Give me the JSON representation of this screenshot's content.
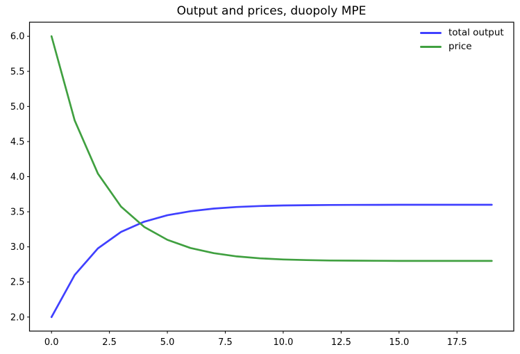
{
  "chart_data": {
    "type": "line",
    "title": "Output and prices, duopoly MPE",
    "xlabel": "",
    "ylabel": "",
    "grid": false,
    "x": [
      0,
      1,
      2,
      3,
      4,
      5,
      6,
      7,
      8,
      9,
      10,
      11,
      12,
      13,
      14,
      15,
      16,
      17,
      18,
      19
    ],
    "series": [
      {
        "name": "total output",
        "color": "#4040ff",
        "values": [
          2.0,
          2.6,
          2.978,
          3.213,
          3.358,
          3.45,
          3.508,
          3.545,
          3.568,
          3.582,
          3.59,
          3.594,
          3.597,
          3.598,
          3.599,
          3.6,
          3.6,
          3.6,
          3.6,
          3.6
        ]
      },
      {
        "name": "price",
        "color": "#40a040",
        "values": [
          6.0,
          4.8,
          4.044,
          3.574,
          3.284,
          3.1,
          2.984,
          2.91,
          2.864,
          2.836,
          2.82,
          2.812,
          2.806,
          2.804,
          2.802,
          2.8,
          2.8,
          2.8,
          2.8,
          2.8
        ]
      }
    ],
    "xlim": [
      -0.95,
      19.95
    ],
    "ylim": [
      1.8,
      6.2
    ],
    "xticks": {
      "values": [
        0,
        2.5,
        5,
        7.5,
        10,
        12.5,
        15,
        17.5
      ],
      "labels": [
        "0.0",
        "2.5",
        "5.0",
        "7.5",
        "10.0",
        "12.5",
        "15.0",
        "17.5"
      ]
    },
    "yticks": {
      "values": [
        2.0,
        2.5,
        3.0,
        3.5,
        4.0,
        4.5,
        5.0,
        5.5,
        6.0
      ],
      "labels": [
        "2.0",
        "2.5",
        "3.0",
        "3.5",
        "4.0",
        "4.5",
        "5.0",
        "5.5",
        "6.0"
      ]
    },
    "legend": {
      "position": "upper right",
      "frame": false
    },
    "colors": {
      "spine": "#000000",
      "tick_label": "#000000",
      "background": "#ffffff"
    }
  }
}
